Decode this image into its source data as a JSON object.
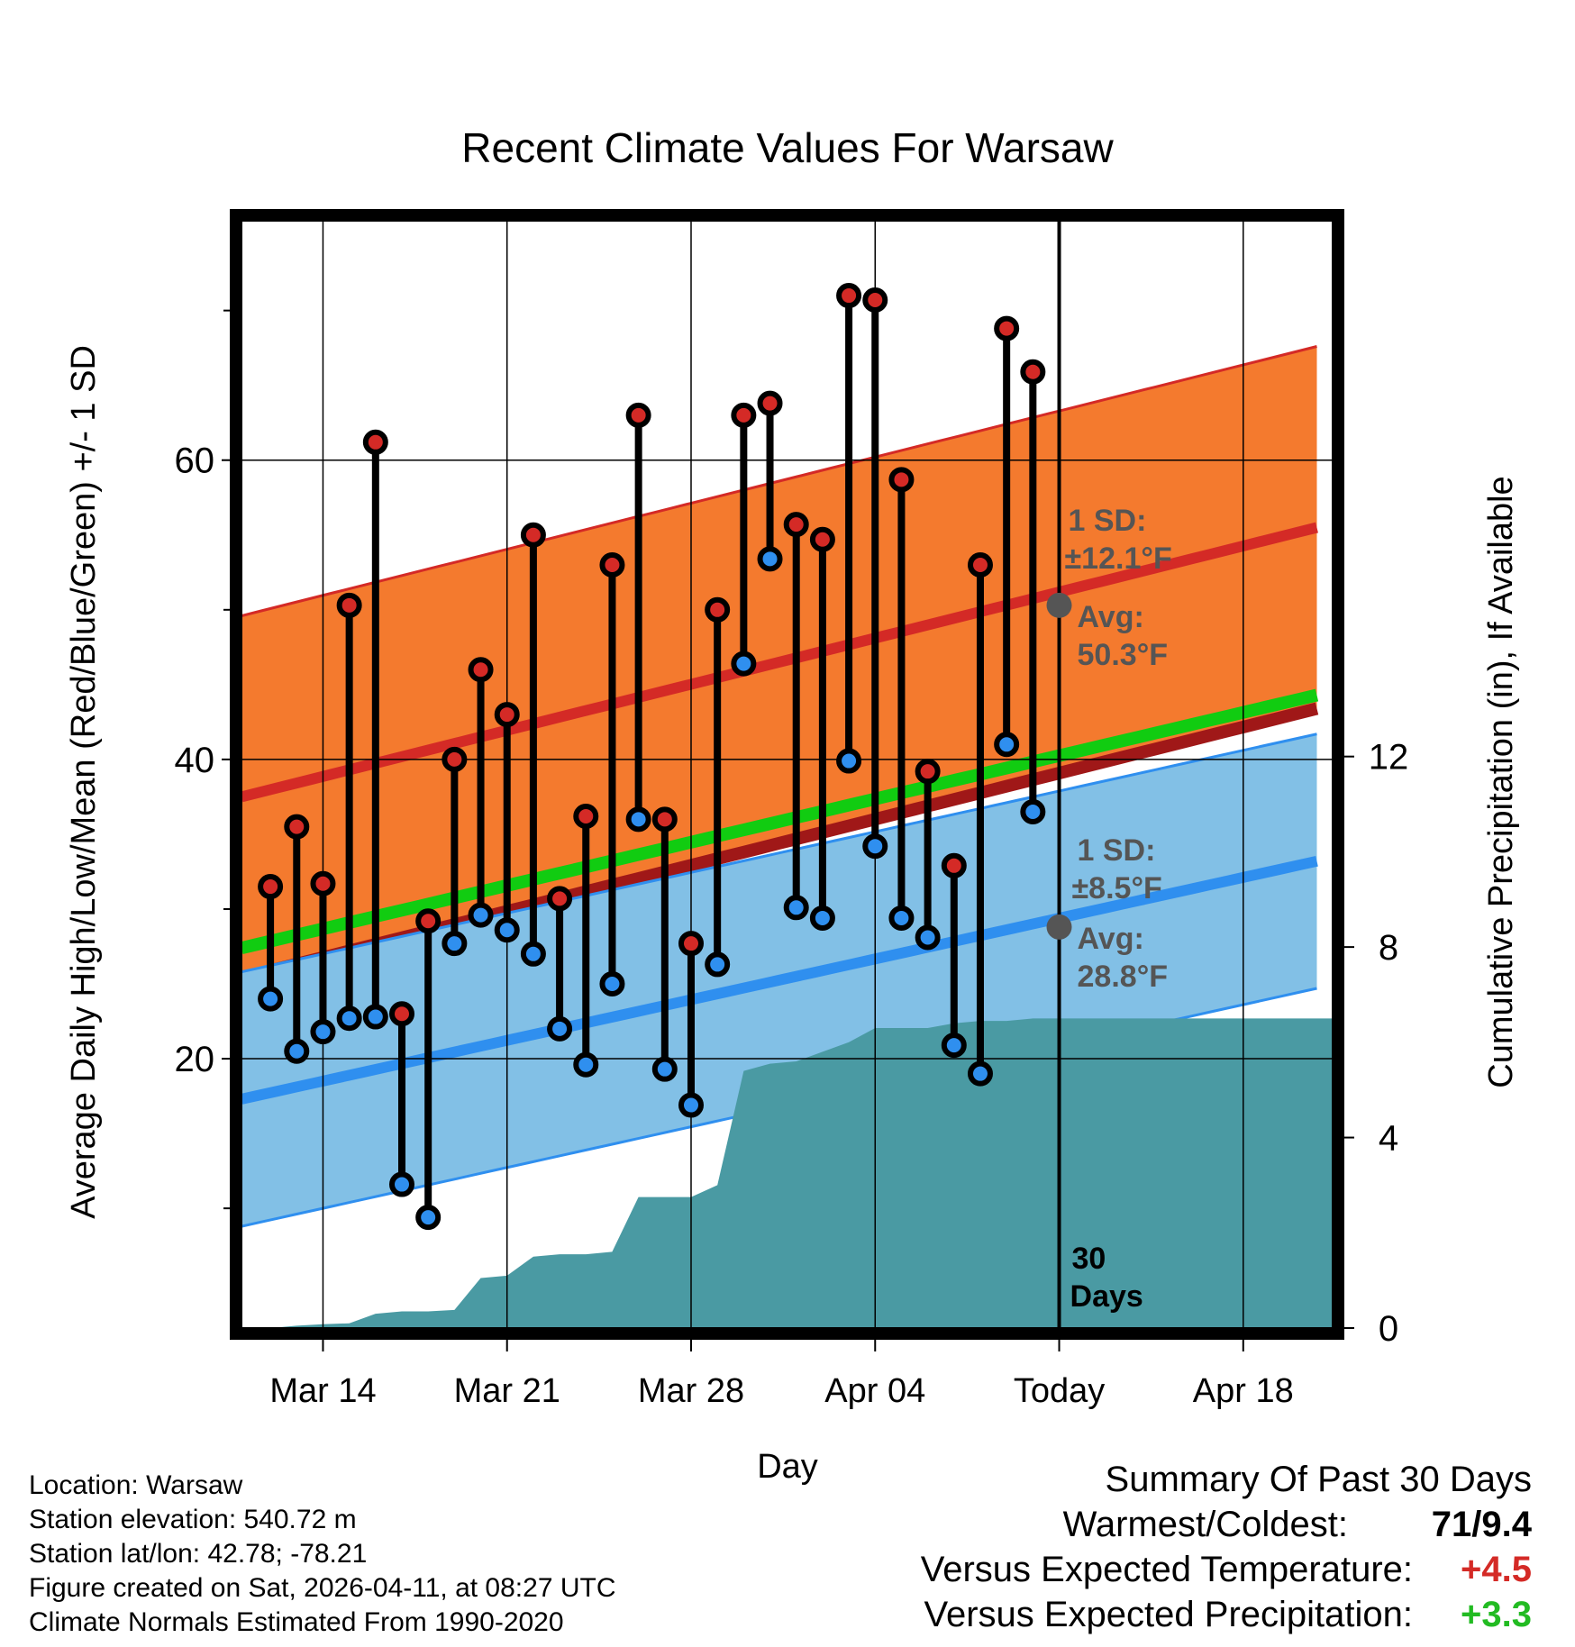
{
  "chart_data": {
    "type": "line",
    "title": "Recent Climate Values For Warsaw",
    "xlabel": "Day",
    "ylabel": "Average Daily High/Low/Mean (Red/Blue/Green) +/- 1 SD",
    "y2label": "Cumulative Precipitation (in), If Available",
    "ylim": [
      2,
      76
    ],
    "y2lim": [
      0,
      23.25
    ],
    "x_range_days": [
      -31.1,
      10.4
    ],
    "x_ticks": [
      {
        "day": -28,
        "label": "Mar 14"
      },
      {
        "day": -21,
        "label": "Mar 21"
      },
      {
        "day": -14,
        "label": "Mar 28"
      },
      {
        "day": -7,
        "label": "Apr 04"
      },
      {
        "day": 0,
        "label": "Today"
      },
      {
        "day": 7,
        "label": "Apr 18"
      }
    ],
    "y_ticks": [
      20,
      40,
      60
    ],
    "y_minor_ticks": [
      10,
      30,
      50,
      70
    ],
    "y2_ticks": [
      0,
      4,
      8,
      12
    ],
    "normals": {
      "start_day": -31.1,
      "end_day": 9.8,
      "high_avg": [
        37.5,
        55.5
      ],
      "high_sd": 12.1,
      "low_avg": [
        17.3,
        33.2
      ],
      "low_sd": 8.5,
      "mean_avg": [
        27.4,
        44.3
      ]
    },
    "observations": {
      "days": [
        -30,
        -29,
        -28,
        -27,
        -26,
        -25,
        -24,
        -23,
        -22,
        -21,
        -20,
        -19,
        -18,
        -17,
        -16,
        -15,
        -14,
        -13,
        -12,
        -11,
        -10,
        -9,
        -8,
        -7,
        -6,
        -5,
        -4,
        -3,
        -2,
        -1
      ],
      "highs": [
        31.5,
        35.5,
        31.7,
        50.3,
        61.2,
        23.0,
        29.2,
        40.0,
        46.0,
        43.0,
        55.0,
        30.7,
        36.2,
        53.0,
        63.0,
        36.0,
        27.7,
        50.0,
        63.0,
        63.8,
        55.7,
        54.7,
        71.0,
        70.7,
        58.7,
        39.2,
        32.9,
        53.0,
        68.8,
        65.9
      ],
      "lows": [
        24.0,
        20.5,
        21.8,
        22.7,
        22.8,
        11.6,
        9.4,
        27.7,
        29.6,
        28.6,
        27.0,
        22.0,
        19.6,
        25.0,
        36.0,
        19.3,
        16.9,
        26.3,
        46.4,
        53.4,
        30.1,
        29.4,
        39.9,
        34.2,
        29.4,
        28.1,
        20.9,
        19.0,
        41.0,
        36.5
      ]
    },
    "precipitation": {
      "days": [
        -30,
        -29,
        -28,
        -27,
        -26,
        -25,
        -24,
        -23,
        -22,
        -21,
        -20,
        -19,
        -18,
        -17,
        -16,
        -15,
        -14,
        -13,
        -12,
        -11,
        -10,
        -9,
        -8,
        -7,
        -6,
        -5,
        -4,
        -3,
        -2,
        -1,
        0,
        10.4
      ],
      "cumulative": [
        0.0,
        0.05,
        0.08,
        0.1,
        0.3,
        0.35,
        0.35,
        0.38,
        1.05,
        1.1,
        1.5,
        1.55,
        1.55,
        1.6,
        2.75,
        2.75,
        2.75,
        3.0,
        5.4,
        5.55,
        5.6,
        5.8,
        6.0,
        6.3,
        6.3,
        6.3,
        6.4,
        6.45,
        6.45,
        6.5,
        6.5,
        6.5
      ]
    },
    "annotations": {
      "high_sd_label": "1 SD:",
      "high_sd_value": "±12.1°F",
      "high_avg_label": "Avg:",
      "high_avg_value": "50.3°F",
      "low_sd_label": "1 SD:",
      "low_sd_value": "±8.5°F",
      "low_avg_label": "Avg:",
      "low_avg_value": "28.8°F",
      "today_high_avg": 50.3,
      "today_low_avg": 28.8,
      "days_label_1": "30",
      "days_label_2": "Days"
    },
    "colors": {
      "high_band": "#f47a2e",
      "high_line": "#d42a26",
      "high_dot": "#d42a26",
      "low_band": "#82c0e6",
      "low_line": "#2f8fef",
      "low_dot": "#2f8fef",
      "mean_line": "#11cc11",
      "precip_fill": "#4a9aa3",
      "annotation": "#555555"
    }
  },
  "info": {
    "location": "Location: Warsaw",
    "elevation": "Station elevation: 540.72 m",
    "latlon": "Station lat/lon: 42.78; -78.21",
    "created": "Figure created on Sat, 2026-04-11, at 08:27 UTC",
    "normals": "Climate Normals Estimated From 1990-2020"
  },
  "summary": {
    "title": "Summary Of Past 30 Days",
    "warmest_label": "Warmest/Coldest:",
    "warmest_value": "71/9.4",
    "temp_label": "Versus Expected Temperature:",
    "temp_value": "+4.5",
    "temp_color": "#d42a26",
    "precip_label": "Versus Expected Precipitation:",
    "precip_value": "+3.3",
    "precip_color": "#22bb22"
  }
}
